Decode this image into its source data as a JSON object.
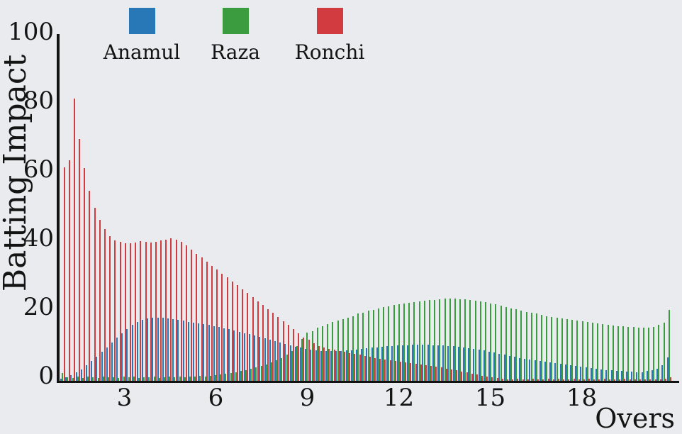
{
  "chart_data": {
    "type": "bar",
    "subtype": "grouped-thin-bars-per-ball",
    "title": "",
    "xlabel": "Overs",
    "ylabel": "Batting Impact",
    "ylim": [
      0,
      100
    ],
    "yticks": [
      0,
      20,
      40,
      60,
      80,
      100
    ],
    "xticks": [
      3,
      6,
      9,
      12,
      15,
      18
    ],
    "grid": false,
    "legend_position": "top",
    "balls_per_over": 6,
    "series": [
      {
        "name": "Anamul",
        "color": "#2878b8",
        "values": [
          0.6,
          1.0,
          1.6,
          2.3,
          3.3,
          4.4,
          5.7,
          7.0,
          8.3,
          9.6,
          11.0,
          12.4,
          13.8,
          15.0,
          16.1,
          17.0,
          17.7,
          18.1,
          18.3,
          18.3,
          18.2,
          18.0,
          17.8,
          17.6,
          17.4,
          17.1,
          16.9,
          16.6,
          16.4,
          16.1,
          15.8,
          15.5,
          15.2,
          14.9,
          14.5,
          14.2,
          13.8,
          13.5,
          13.1,
          12.7,
          12.3,
          11.9,
          11.5,
          11.1,
          10.7,
          10.3,
          9.9,
          9.5,
          9.2,
          8.9,
          8.7,
          8.6,
          8.5,
          8.5,
          8.5,
          8.6,
          8.7,
          8.8,
          9.0,
          9.2,
          9.4,
          9.5,
          9.7,
          9.8,
          10.0,
          10.1,
          10.2,
          10.3,
          10.3,
          10.4,
          10.4,
          10.4,
          10.4,
          10.3,
          10.3,
          10.2,
          10.1,
          10.0,
          9.8,
          9.6,
          9.4,
          9.2,
          9.0,
          8.7,
          8.4,
          8.1,
          7.8,
          7.5,
          7.2,
          6.9,
          6.6,
          6.3,
          6.0,
          5.8,
          5.6,
          5.4,
          5.2,
          5.0,
          4.8,
          4.6,
          4.4,
          4.2,
          4.0,
          3.8,
          3.6,
          3.4,
          3.2,
          3.1,
          2.9,
          2.8,
          2.7,
          2.6,
          2.5,
          2.4,
          2.4,
          2.7,
          2.9,
          3.5,
          4.5,
          6.8
        ]
      },
      {
        "name": "Raza",
        "color": "#3b9c3f",
        "values": [
          2.2,
          0.9,
          0.8,
          1.1,
          0.8,
          1.2,
          0.9,
          0.8,
          1.1,
          0.9,
          1.0,
          0.8,
          1.1,
          0.9,
          1.2,
          0.8,
          1.0,
          0.9,
          1.1,
          0.8,
          1.0,
          1.2,
          0.9,
          1.1,
          1.0,
          1.2,
          1.1,
          1.3,
          1.2,
          1.4,
          1.5,
          1.7,
          1.9,
          2.1,
          2.4,
          2.7,
          3.0,
          3.4,
          3.8,
          4.2,
          4.7,
          5.2,
          5.8,
          6.6,
          7.5,
          8.5,
          10.0,
          12.0,
          14.0,
          14.4,
          15.3,
          15.8,
          16.3,
          17.1,
          17.5,
          17.8,
          18.3,
          18.7,
          19.4,
          19.7,
          20.3,
          20.5,
          20.9,
          21.3,
          21.6,
          21.9,
          22.1,
          22.3,
          22.6,
          22.8,
          23.0,
          23.2,
          23.4,
          23.5,
          23.7,
          23.8,
          23.8,
          23.8,
          23.7,
          23.6,
          23.5,
          23.3,
          23.0,
          22.7,
          22.4,
          22.1,
          21.7,
          21.4,
          21.0,
          20.7,
          20.3,
          20.0,
          19.7,
          19.4,
          19.0,
          18.7,
          18.5,
          18.2,
          18.0,
          17.8,
          17.6,
          17.4,
          17.2,
          17.0,
          16.8,
          16.6,
          16.4,
          16.2,
          16.0,
          15.8,
          15.7,
          15.6,
          15.5,
          15.4,
          15.3,
          15.3,
          15.5,
          16.1,
          16.8,
          20.5
        ]
      },
      {
        "name": "Ronchi",
        "color": "#d23b3f",
        "values": [
          62.0,
          64.0,
          82.0,
          70.2,
          61.8,
          55.1,
          50.2,
          46.7,
          44.1,
          42.0,
          40.8,
          40.3,
          40.0,
          40.0,
          40.2,
          40.5,
          40.3,
          40.1,
          40.4,
          40.7,
          41.0,
          41.3,
          41.0,
          40.4,
          39.2,
          38.0,
          36.9,
          35.7,
          34.6,
          33.4,
          32.3,
          31.1,
          30.0,
          28.8,
          27.7,
          26.5,
          25.4,
          24.2,
          23.1,
          21.9,
          20.8,
          19.6,
          18.5,
          17.3,
          16.1,
          14.9,
          13.7,
          12.4,
          11.8,
          10.9,
          10.1,
          9.6,
          9.1,
          8.9,
          8.6,
          8.3,
          8.0,
          7.7,
          7.5,
          7.2,
          6.9,
          6.6,
          6.4,
          6.1,
          5.9,
          5.7,
          5.4,
          5.2,
          5.0,
          4.8,
          4.6,
          4.4,
          4.2,
          4.0,
          3.8,
          3.5,
          3.2,
          2.9,
          2.6,
          2.3,
          2.0,
          1.7,
          1.4,
          1.1,
          0.9,
          0.7,
          0.5,
          0.4,
          0.3,
          0.5,
          0.4,
          0.3,
          0.6,
          0.4,
          0.3,
          0.5,
          0.4,
          0.6,
          0.3,
          0.4,
          0.5,
          0.3,
          0.4,
          0.6,
          0.3,
          0.4,
          0.5,
          0.3,
          0.4,
          0.3,
          0.5,
          0.4,
          0.3,
          0.4,
          0.3,
          0.4,
          0.3,
          0.4,
          0.5,
          1.0
        ]
      }
    ]
  },
  "legend": {
    "items": [
      {
        "label": "Anamul",
        "color": "#2878b8"
      },
      {
        "label": "Raza",
        "color": "#3b9c3f"
      },
      {
        "label": "Ronchi",
        "color": "#d23b3f"
      }
    ]
  },
  "colors": {
    "background": "#e9ebee",
    "axis": "#121212",
    "text": "#141414"
  }
}
